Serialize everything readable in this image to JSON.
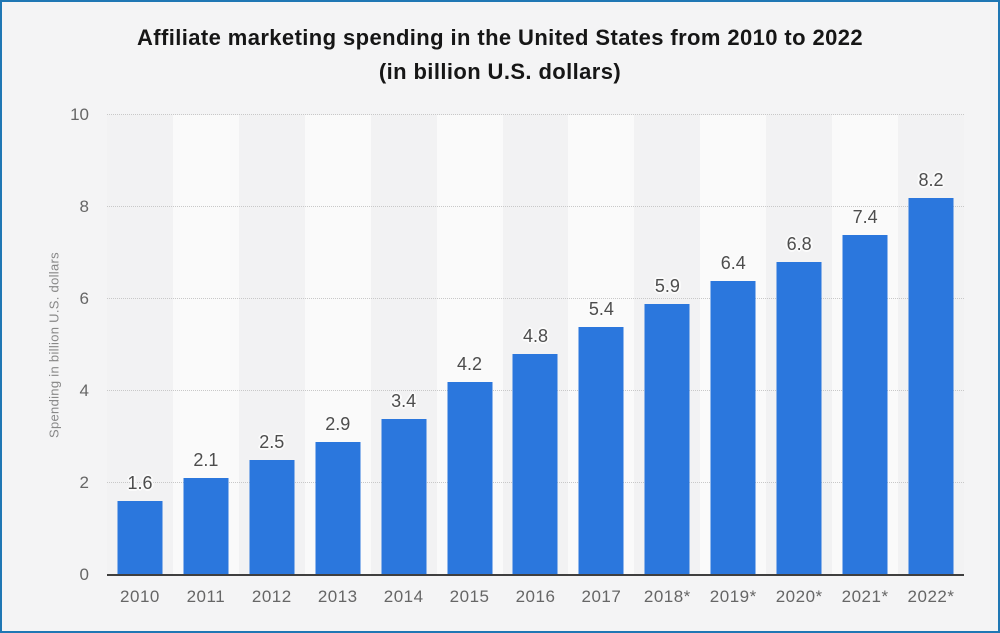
{
  "title": {
    "line1": "Affiliate marketing spending in the United States from 2010 to 2022",
    "line2": "(in billion U.S. dollars)"
  },
  "chart_data": {
    "type": "bar",
    "title": "Affiliate marketing spending in the United States from 2010 to 2022 (in billion U.S. dollars)",
    "categories": [
      "2010",
      "2011",
      "2012",
      "2013",
      "2014",
      "2015",
      "2016",
      "2017",
      "2018*",
      "2019*",
      "2020*",
      "2021*",
      "2022*"
    ],
    "values": [
      1.6,
      2.1,
      2.5,
      2.9,
      3.4,
      4.2,
      4.8,
      5.4,
      5.9,
      6.4,
      6.8,
      7.4,
      8.2
    ],
    "value_labels": [
      "1.6",
      "2.1",
      "2.5",
      "2.9",
      "3.4",
      "4.2",
      "4.8",
      "5.4",
      "5.9",
      "6.4",
      "6.8",
      "7.4",
      "8.2"
    ],
    "xlabel": "",
    "ylabel": "Spending in billion U.S. dollars",
    "ylim": [
      0,
      10
    ],
    "yticks": [
      0,
      2,
      4,
      6,
      8,
      10
    ],
    "grid": "horizontal-dotted",
    "legend": "none",
    "colors": {
      "bar": "#2b77dd",
      "frame_border": "#1f77b4",
      "background": "#f4f4f5",
      "band_dark": "#f2f2f3",
      "band_light": "#fafafa",
      "gridline": "#c8c8c8",
      "axis_line": "#3f3f3f",
      "tick_text": "#666666",
      "value_text": "#4d4d4d",
      "title_text": "#161616"
    }
  }
}
